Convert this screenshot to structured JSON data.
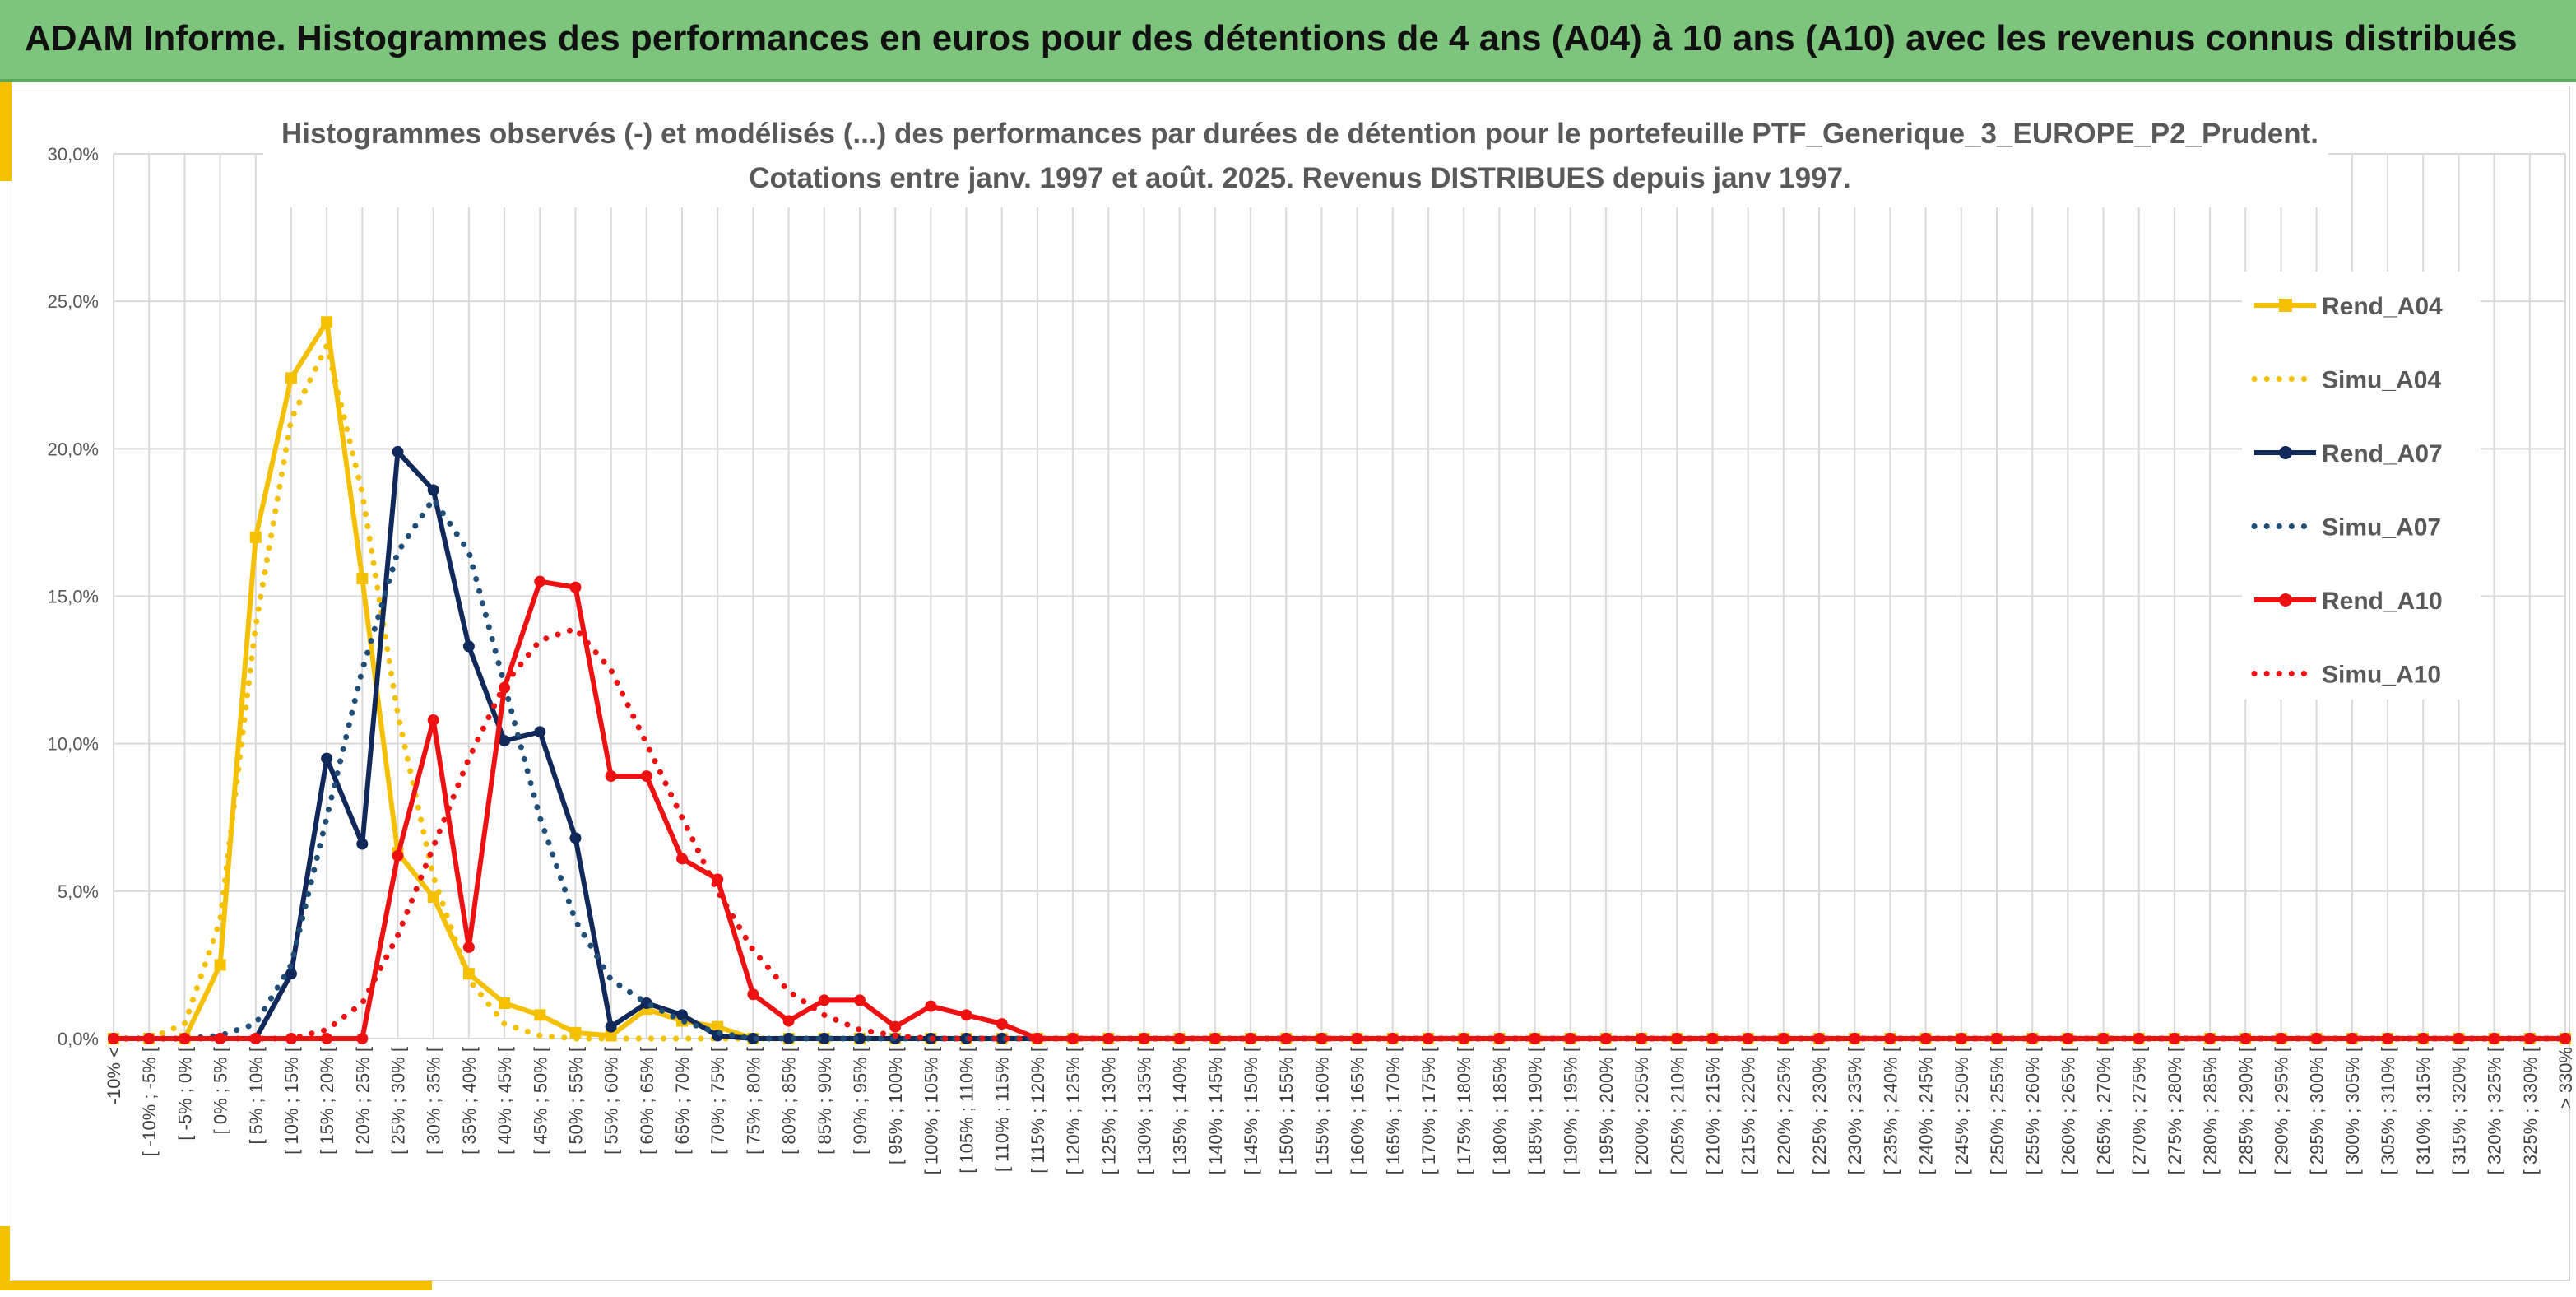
{
  "header": {
    "title": "ADAM Informe. Histogrammes des performances en euros pour des détentions de 4 ans (A04) à 10 ans (A10) avec les revenus connus distribués"
  },
  "chart_data": {
    "type": "line",
    "title_line1": "Histogrammes observés (-) et modélisés (...) des performances par durées de détention pour le portefeuille PTF_Generique_3_EUROPE_P2_Prudent.",
    "title_line2": "Cotations entre janv. 1997 et août. 2025. Revenus DISTRIBUES depuis janv 1997.",
    "xlabel": "",
    "ylabel": "",
    "ylim": [
      0,
      30
    ],
    "y_ticks": [
      "0,0%",
      "5,0%",
      "10,0%",
      "15,0%",
      "20,0%",
      "25,0%",
      "30,0%"
    ],
    "grid": true,
    "legend_position": "right",
    "categories": [
      "-10% <",
      "[ -10% ; -5% [",
      "[ -5% ; 0% [",
      "[ 0% ; 5% [",
      "[ 5% ; 10% [",
      "[ 10% ; 15% [",
      "[ 15% ; 20% [",
      "[ 20% ; 25% [",
      "[ 25% ; 30% [",
      "[ 30% ; 35% [",
      "[ 35% ; 40% [",
      "[ 40% ; 45% [",
      "[ 45% ; 50% [",
      "[ 50% ; 55% [",
      "[ 55% ; 60% [",
      "[ 60% ; 65% [",
      "[ 65% ; 70% [",
      "[ 70% ; 75% [",
      "[ 75% ; 80% [",
      "[ 80% ; 85% [",
      "[ 85% ; 90% [",
      "[ 90% ; 95% [",
      "[ 95% ; 100% [",
      "[ 100% ; 105% [",
      "[ 105% ; 110% [",
      "[ 110% ; 115% [",
      "[ 115% ; 120% [",
      "[ 120% ; 125% [",
      "[ 125% ; 130% [",
      "[ 130% ; 135% [",
      "[ 135% ; 140% [",
      "[ 140% ; 145% [",
      "[ 145% ; 150% [",
      "[ 150% ; 155% [",
      "[ 155% ; 160% [",
      "[ 160% ; 165% [",
      "[ 165% ; 170% [",
      "[ 170% ; 175% [",
      "[ 175% ; 180% [",
      "[ 180% ; 185% [",
      "[ 185% ; 190% [",
      "[ 190% ; 195% [",
      "[ 195% ; 200% [",
      "[ 200% ; 205% [",
      "[ 205% ; 210% [",
      "[ 210% ; 215% [",
      "[ 215% ; 220% [",
      "[ 220% ; 225% [",
      "[ 225% ; 230% [",
      "[ 230% ; 235% [",
      "[ 235% ; 240% [",
      "[ 240% ; 245% [",
      "[ 245% ; 250% [",
      "[ 250% ; 255% [",
      "[ 255% ; 260% [",
      "[ 260% ; 265% [",
      "[ 265% ; 270% [",
      "[ 270% ; 275% [",
      "[ 275% ; 280% [",
      "[ 280% ; 285% [",
      "[ 285% ; 290% [",
      "[ 290% ; 295% [",
      "[ 295% ; 300% [",
      "[ 300% ; 305% [",
      "[ 305% ; 310% [",
      "[ 310% ; 315% [",
      "[ 315% ; 320% [",
      "[ 320% ; 325% [",
      "[ 325% ; 330% [",
      "> 330%"
    ],
    "series": [
      {
        "name": "Rend_A04",
        "color": "#f5c000",
        "style": "solid",
        "marker": "square",
        "values": [
          0,
          0,
          0,
          2.5,
          17.0,
          22.4,
          24.3,
          15.6,
          6.3,
          4.8,
          2.2,
          1.2,
          0.8,
          0.2,
          0.1,
          1.0,
          0.6,
          0.4,
          0,
          0,
          0,
          0,
          0,
          0,
          0,
          0,
          0,
          0,
          0,
          0,
          0,
          0,
          0,
          0,
          0,
          0,
          0,
          0,
          0,
          0,
          0,
          0,
          0,
          0,
          0,
          0,
          0,
          0,
          0,
          0,
          0,
          0,
          0,
          0,
          0,
          0,
          0,
          0,
          0,
          0,
          0,
          0,
          0,
          0,
          0,
          0,
          0,
          0,
          0,
          0
        ]
      },
      {
        "name": "Simu_A04",
        "color": "#f5c000",
        "style": "dotted",
        "marker": "none",
        "values": [
          0,
          0,
          0.5,
          4.0,
          14.0,
          21.0,
          23.5,
          18.5,
          11.0,
          5.5,
          2.0,
          0.5,
          0.1,
          0,
          0,
          0,
          0,
          0,
          0,
          0,
          0,
          0,
          0,
          0,
          0,
          0,
          0,
          0,
          0,
          0,
          0,
          0,
          0,
          0,
          0,
          0,
          0,
          0,
          0,
          0,
          0,
          0,
          0,
          0,
          0,
          0,
          0,
          0,
          0,
          0,
          0,
          0,
          0,
          0,
          0,
          0,
          0,
          0,
          0,
          0,
          0,
          0,
          0,
          0,
          0,
          0,
          0,
          0,
          0,
          0
        ]
      },
      {
        "name": "Rend_A07",
        "color": "#10285a",
        "style": "solid",
        "marker": "circle",
        "values": [
          0,
          0,
          0,
          0,
          0,
          2.2,
          9.5,
          6.6,
          19.9,
          18.6,
          13.3,
          10.1,
          10.4,
          6.8,
          0.4,
          1.2,
          0.8,
          0.1,
          0,
          0,
          0,
          0,
          0,
          0,
          0,
          0,
          0,
          0,
          0,
          0,
          0,
          0,
          0,
          0,
          0,
          0,
          0,
          0,
          0,
          0,
          0,
          0,
          0,
          0,
          0,
          0,
          0,
          0,
          0,
          0,
          0,
          0,
          0,
          0,
          0,
          0,
          0,
          0,
          0,
          0,
          0,
          0,
          0,
          0,
          0,
          0,
          0,
          0,
          0,
          0
        ]
      },
      {
        "name": "Simu_A07",
        "color": "#1f4e79",
        "style": "dotted",
        "marker": "none",
        "values": [
          0,
          0,
          0,
          0.1,
          0.5,
          2.5,
          7.5,
          12.5,
          16.5,
          18.3,
          16.5,
          12.0,
          7.5,
          4.0,
          2.0,
          1.2,
          0.6,
          0.2,
          0,
          0,
          0,
          0,
          0,
          0,
          0,
          0,
          0,
          0,
          0,
          0,
          0,
          0,
          0,
          0,
          0,
          0,
          0,
          0,
          0,
          0,
          0,
          0,
          0,
          0,
          0,
          0,
          0,
          0,
          0,
          0,
          0,
          0,
          0,
          0,
          0,
          0,
          0,
          0,
          0,
          0,
          0,
          0,
          0,
          0,
          0,
          0,
          0,
          0,
          0,
          0
        ]
      },
      {
        "name": "Rend_A10",
        "color": "#ee1111",
        "style": "solid",
        "marker": "circle",
        "values": [
          0,
          0,
          0,
          0,
          0,
          0,
          0,
          0,
          6.2,
          10.8,
          3.1,
          11.9,
          15.5,
          15.3,
          8.9,
          8.9,
          6.1,
          5.4,
          1.5,
          0.6,
          1.3,
          1.3,
          0.4,
          1.1,
          0.8,
          0.5,
          0,
          0,
          0,
          0,
          0,
          0,
          0,
          0,
          0,
          0,
          0,
          0,
          0,
          0,
          0,
          0,
          0,
          0,
          0,
          0,
          0,
          0,
          0,
          0,
          0,
          0,
          0,
          0,
          0,
          0,
          0,
          0,
          0,
          0,
          0,
          0,
          0,
          0,
          0,
          0,
          0,
          0,
          0,
          0
        ]
      },
      {
        "name": "Simu_A10",
        "color": "#ee1111",
        "style": "dotted",
        "marker": "none",
        "values": [
          0,
          0,
          0,
          0,
          0,
          0,
          0.3,
          1.2,
          3.5,
          6.5,
          9.5,
          12.0,
          13.5,
          13.9,
          12.5,
          10.0,
          7.5,
          5.0,
          3.0,
          1.6,
          0.8,
          0.3,
          0.1,
          0,
          0,
          0,
          0,
          0,
          0,
          0,
          0,
          0,
          0,
          0,
          0,
          0,
          0,
          0,
          0,
          0,
          0,
          0,
          0,
          0,
          0,
          0,
          0,
          0,
          0,
          0,
          0,
          0,
          0,
          0,
          0,
          0,
          0,
          0,
          0,
          0,
          0,
          0,
          0,
          0,
          0,
          0,
          0,
          0,
          0,
          0
        ]
      }
    ]
  }
}
